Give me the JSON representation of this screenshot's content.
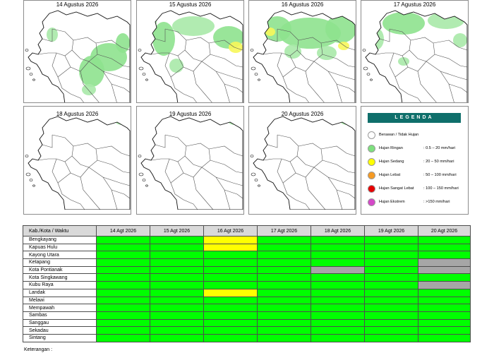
{
  "maps": [
    {
      "title": "14 Agustus 2026",
      "rain": "green-south"
    },
    {
      "title": "15 Agustus 2026",
      "rain": "green-yellow-east"
    },
    {
      "title": "16 Agustus 2026",
      "rain": "green-yellow-wide"
    },
    {
      "title": "17 Agustus 2026",
      "rain": "green-north"
    },
    {
      "title": "18 Agustus 2026",
      "rain": "light"
    },
    {
      "title": "19 Agustus 2026",
      "rain": "light"
    },
    {
      "title": "20 Agustus 2026",
      "rain": "light"
    }
  ],
  "legend": {
    "title": "LEGENDA",
    "items": [
      {
        "name": "Berawan / Tidak Hujan",
        "range": "",
        "color": "#ffffff"
      },
      {
        "name": "Hujan Ringan",
        "range": ": 0.5 – 20 mm/hari",
        "color": "#7ee07e"
      },
      {
        "name": "Hujan Sedang",
        "range": ": 20 – 50 mm/hari",
        "color": "#ffff00"
      },
      {
        "name": "Hujan Lebat",
        "range": ": 50 – 100 mm/hari",
        "color": "#f59a23"
      },
      {
        "name": "Hujan Sangat Lebat",
        "range": ": 100 – 150 mm/hari",
        "color": "#e60000"
      },
      {
        "name": "Hujan Ekstrem",
        "range": ": >150 mm/hari",
        "color": "#d448c8"
      }
    ]
  },
  "table": {
    "header_region": "Kab./Kota / Waktu",
    "dates": [
      "14 Agt 2026",
      "15 Agt 2026",
      "16 Agt 2026",
      "17 Agt 2026",
      "18 Agt 2026",
      "19 Agt 2026",
      "20 Agt 2026"
    ],
    "rows": [
      {
        "region": "Bengkayang",
        "cells": [
          "green",
          "green",
          "yellow",
          "green",
          "green",
          "green",
          "green"
        ]
      },
      {
        "region": "Kapuas Hulu",
        "cells": [
          "green",
          "green",
          "yellow",
          "green",
          "green",
          "green",
          "green"
        ]
      },
      {
        "region": "Kayong Utara",
        "cells": [
          "green",
          "green",
          "green",
          "green",
          "green",
          "green",
          "green"
        ]
      },
      {
        "region": "Ketapang",
        "cells": [
          "green",
          "green",
          "green",
          "green",
          "green",
          "green",
          "gray"
        ]
      },
      {
        "region": "Kota Pontianak",
        "cells": [
          "green",
          "green",
          "green",
          "green",
          "gray",
          "green",
          "gray"
        ]
      },
      {
        "region": "Kota Singkawang",
        "cells": [
          "green",
          "green",
          "green",
          "green",
          "green",
          "green",
          "green"
        ]
      },
      {
        "region": "Kubu Raya",
        "cells": [
          "green",
          "green",
          "green",
          "green",
          "green",
          "green",
          "gray"
        ]
      },
      {
        "region": "Landak",
        "cells": [
          "green",
          "green",
          "yellow",
          "green",
          "green",
          "green",
          "green"
        ]
      },
      {
        "region": "Melawi",
        "cells": [
          "green",
          "green",
          "green",
          "green",
          "green",
          "green",
          "green"
        ]
      },
      {
        "region": "Mempawah",
        "cells": [
          "green",
          "green",
          "green",
          "green",
          "green",
          "green",
          "green"
        ]
      },
      {
        "region": "Sambas",
        "cells": [
          "green",
          "green",
          "green",
          "green",
          "green",
          "green",
          "green"
        ]
      },
      {
        "region": "Sanggau",
        "cells": [
          "green",
          "green",
          "green",
          "green",
          "green",
          "green",
          "green"
        ]
      },
      {
        "region": "Sekadau",
        "cells": [
          "green",
          "green",
          "green",
          "green",
          "green",
          "green",
          "green"
        ]
      },
      {
        "region": "Sintang",
        "cells": [
          "green",
          "green",
          "green",
          "green",
          "green",
          "green",
          "green"
        ]
      }
    ],
    "note": "Keterangan :"
  }
}
